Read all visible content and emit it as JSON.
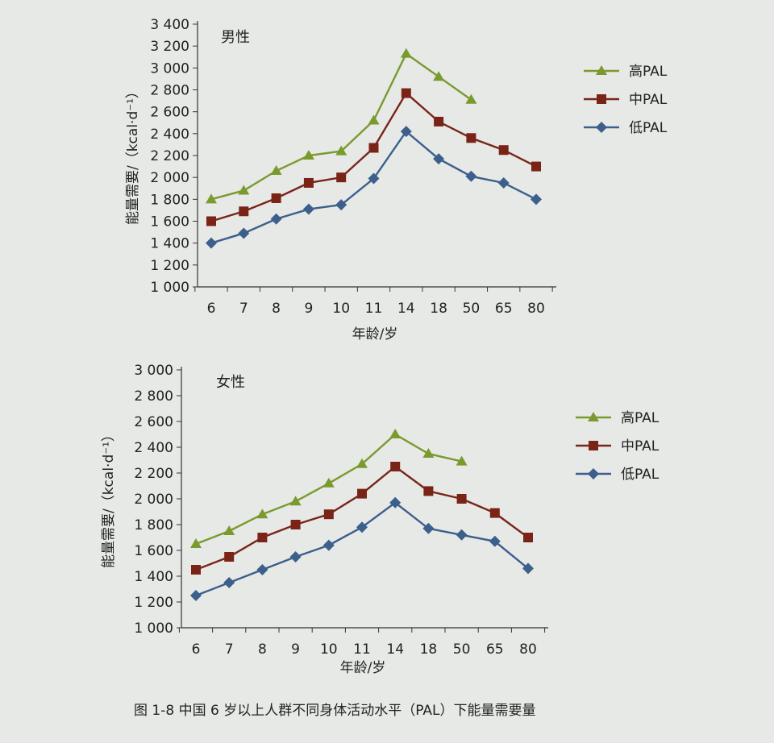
{
  "caption": "图 1-8   中国 6 岁以上人群不同身体活动水平（PAL）下能量需要量",
  "colors": {
    "high": "#7a9a2e",
    "mid": "#7a2418",
    "low": "#3c5f8c",
    "axis": "#333333"
  },
  "chart_data": [
    {
      "type": "line",
      "title": "男性",
      "xlabel": "年龄/岁",
      "ylabel": "能量需要/（kcal·d⁻¹）",
      "categories": [
        "6",
        "7",
        "8",
        "9",
        "10",
        "11",
        "14",
        "18",
        "50",
        "65",
        "80"
      ],
      "ylim": [
        1000,
        3400
      ],
      "yticks": [
        "1 000",
        "1 200",
        "1 400",
        "1 600",
        "1 800",
        "2 000",
        "2 200",
        "2 400",
        "2 600",
        "2 800",
        "3 000",
        "3 200",
        "3 400"
      ],
      "legend_position": "right",
      "series": [
        {
          "name": "高PAL",
          "marker": "triangle",
          "values": [
            1800,
            1880,
            2060,
            2200,
            2240,
            2520,
            3130,
            2920,
            2710,
            null,
            null
          ]
        },
        {
          "name": "中PAL",
          "marker": "square",
          "values": [
            1600,
            1690,
            1810,
            1950,
            2000,
            2270,
            2770,
            2510,
            2360,
            2250,
            2100
          ]
        },
        {
          "name": "低PAL",
          "marker": "diamond",
          "values": [
            1400,
            1490,
            1620,
            1710,
            1750,
            1990,
            2420,
            2170,
            2010,
            1950,
            1800
          ]
        }
      ]
    },
    {
      "type": "line",
      "title": "女性",
      "xlabel": "年龄/岁",
      "ylabel": "能量需要/（kcal·d⁻¹）",
      "categories": [
        "6",
        "7",
        "8",
        "9",
        "10",
        "11",
        "14",
        "18",
        "50",
        "65",
        "80"
      ],
      "ylim": [
        1000,
        3000
      ],
      "yticks": [
        "1 000",
        "1 200",
        "1 400",
        "1 600",
        "1 800",
        "2 000",
        "2 200",
        "2 400",
        "2 600",
        "2 800",
        "3 000"
      ],
      "legend_position": "right",
      "series": [
        {
          "name": "高PAL",
          "marker": "triangle",
          "values": [
            1650,
            1750,
            1880,
            1980,
            2120,
            2270,
            2500,
            2350,
            2290,
            null,
            null
          ]
        },
        {
          "name": "中PAL",
          "marker": "square",
          "values": [
            1450,
            1550,
            1700,
            1800,
            1880,
            2040,
            2250,
            2060,
            2000,
            1890,
            1700
          ]
        },
        {
          "name": "低PAL",
          "marker": "diamond",
          "values": [
            1250,
            1350,
            1450,
            1550,
            1640,
            1780,
            1970,
            1770,
            1720,
            1670,
            1460
          ]
        }
      ]
    }
  ]
}
